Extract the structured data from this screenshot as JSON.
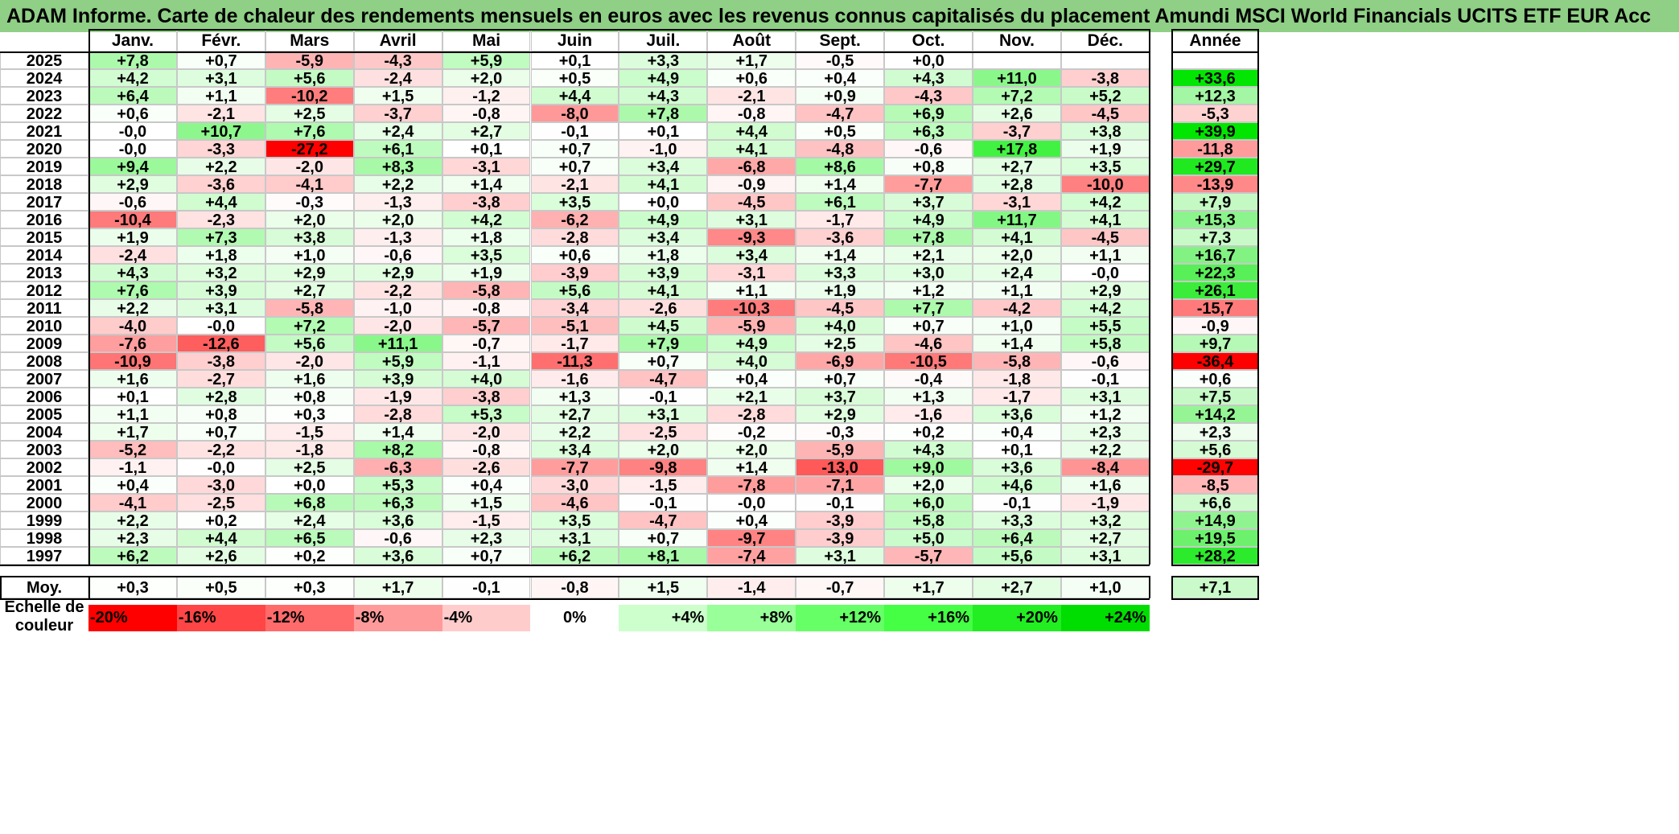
{
  "chart_data": {
    "type": "heatmap",
    "title": "ADAM Informe. Carte de chaleur des rendements mensuels en euros avec les revenus connus capitalisés du placement Amundi MSCI World Financials UCITS ETF EUR Acc",
    "columns": [
      "Janv.",
      "Févr.",
      "Mars",
      "Avril",
      "Mai",
      "Juin",
      "Juil.",
      "Août",
      "Sept.",
      "Oct.",
      "Nov.",
      "Déc."
    ],
    "year_column": "Année",
    "rows": [
      {
        "year": "2025",
        "months": [
          "+7,8",
          "+0,7",
          "-5,9",
          "-4,3",
          "+5,9",
          "+0,1",
          "+3,3",
          "+1,7",
          "-0,5",
          "+0,0",
          "",
          ""
        ],
        "annual": ""
      },
      {
        "year": "2024",
        "months": [
          "+4,2",
          "+3,1",
          "+5,6",
          "-2,4",
          "+2,0",
          "+0,5",
          "+4,9",
          "+0,6",
          "+0,4",
          "+4,3",
          "+11,0",
          "-3,8"
        ],
        "annual": "+33,6"
      },
      {
        "year": "2023",
        "months": [
          "+6,4",
          "+1,1",
          "-10,2",
          "+1,5",
          "-1,2",
          "+4,4",
          "+4,3",
          "-2,1",
          "+0,9",
          "-4,3",
          "+7,2",
          "+5,2"
        ],
        "annual": "+12,3"
      },
      {
        "year": "2022",
        "months": [
          "+0,6",
          "-2,1",
          "+2,5",
          "-3,7",
          "-0,8",
          "-8,0",
          "+7,8",
          "-0,8",
          "-4,7",
          "+6,9",
          "+2,6",
          "-4,5"
        ],
        "annual": "-5,3"
      },
      {
        "year": "2021",
        "months": [
          "-0,0",
          "+10,7",
          "+7,6",
          "+2,4",
          "+2,7",
          "-0,1",
          "+0,1",
          "+4,4",
          "+0,5",
          "+6,3",
          "-3,7",
          "+3,8"
        ],
        "annual": "+39,9"
      },
      {
        "year": "2020",
        "months": [
          "-0,0",
          "-3,3",
          "-27,2",
          "+6,1",
          "+0,1",
          "+0,7",
          "-1,0",
          "+4,1",
          "-4,8",
          "-0,6",
          "+17,8",
          "+1,9"
        ],
        "annual": "-11,8"
      },
      {
        "year": "2019",
        "months": [
          "+9,4",
          "+2,2",
          "-2,0",
          "+8,3",
          "-3,1",
          "+0,7",
          "+3,4",
          "-6,8",
          "+8,6",
          "+0,8",
          "+2,7",
          "+3,5"
        ],
        "annual": "+29,7"
      },
      {
        "year": "2018",
        "months": [
          "+2,9",
          "-3,6",
          "-4,1",
          "+2,2",
          "+1,4",
          "-2,1",
          "+4,1",
          "-0,9",
          "+1,4",
          "-7,7",
          "+2,8",
          "-10,0"
        ],
        "annual": "-13,9"
      },
      {
        "year": "2017",
        "months": [
          "-0,6",
          "+4,4",
          "-0,3",
          "-1,3",
          "-3,8",
          "+3,5",
          "+0,0",
          "-4,5",
          "+6,1",
          "+3,7",
          "-3,1",
          "+4,2"
        ],
        "annual": "+7,9"
      },
      {
        "year": "2016",
        "months": [
          "-10,4",
          "-2,3",
          "+2,0",
          "+2,0",
          "+4,2",
          "-6,2",
          "+4,9",
          "+3,1",
          "-1,7",
          "+4,9",
          "+11,7",
          "+4,1"
        ],
        "annual": "+15,3"
      },
      {
        "year": "2015",
        "months": [
          "+1,9",
          "+7,3",
          "+3,8",
          "-1,3",
          "+1,8",
          "-2,8",
          "+3,4",
          "-9,3",
          "-3,6",
          "+7,8",
          "+4,1",
          "-4,5"
        ],
        "annual": "+7,3"
      },
      {
        "year": "2014",
        "months": [
          "-2,4",
          "+1,8",
          "+1,0",
          "-0,6",
          "+3,5",
          "+0,6",
          "+1,8",
          "+3,4",
          "+1,4",
          "+2,1",
          "+2,0",
          "+1,1"
        ],
        "annual": "+16,7"
      },
      {
        "year": "2013",
        "months": [
          "+4,3",
          "+3,2",
          "+2,9",
          "+2,9",
          "+1,9",
          "-3,9",
          "+3,9",
          "-3,1",
          "+3,3",
          "+3,0",
          "+2,4",
          "-0,0"
        ],
        "annual": "+22,3"
      },
      {
        "year": "2012",
        "months": [
          "+7,6",
          "+3,9",
          "+2,7",
          "-2,2",
          "-5,8",
          "+5,6",
          "+4,1",
          "+1,1",
          "+1,9",
          "+1,2",
          "+1,1",
          "+2,9"
        ],
        "annual": "+26,1"
      },
      {
        "year": "2011",
        "months": [
          "+2,2",
          "+3,1",
          "-5,8",
          "-1,0",
          "-0,8",
          "-3,4",
          "-2,6",
          "-10,3",
          "-4,5",
          "+7,7",
          "-4,2",
          "+4,2"
        ],
        "annual": "-15,7"
      },
      {
        "year": "2010",
        "months": [
          "-4,0",
          "-0,0",
          "+7,2",
          "-2,0",
          "-5,7",
          "-5,1",
          "+4,5",
          "-5,9",
          "+4,0",
          "+0,7",
          "+1,0",
          "+5,5"
        ],
        "annual": "-0,9"
      },
      {
        "year": "2009",
        "months": [
          "-7,6",
          "-12,6",
          "+5,6",
          "+11,1",
          "-0,7",
          "-1,7",
          "+7,9",
          "+4,9",
          "+2,5",
          "-4,6",
          "+1,4",
          "+5,8"
        ],
        "annual": "+9,7"
      },
      {
        "year": "2008",
        "months": [
          "-10,9",
          "-3,8",
          "-2,0",
          "+5,9",
          "-1,1",
          "-11,3",
          "+0,7",
          "+4,0",
          "-6,9",
          "-10,5",
          "-5,8",
          "-0,6"
        ],
        "annual": "-36,4"
      },
      {
        "year": "2007",
        "months": [
          "+1,6",
          "-2,7",
          "+1,6",
          "+3,9",
          "+4,0",
          "-1,6",
          "-4,7",
          "+0,4",
          "+0,7",
          "-0,4",
          "-1,8",
          "-0,1"
        ],
        "annual": "+0,6"
      },
      {
        "year": "2006",
        "months": [
          "+0,1",
          "+2,8",
          "+0,8",
          "-1,9",
          "-3,8",
          "+1,3",
          "-0,1",
          "+2,1",
          "+3,7",
          "+1,3",
          "-1,7",
          "+3,1"
        ],
        "annual": "+7,5"
      },
      {
        "year": "2005",
        "months": [
          "+1,1",
          "+0,8",
          "+0,3",
          "-2,8",
          "+5,3",
          "+2,7",
          "+3,1",
          "-2,8",
          "+2,9",
          "-1,6",
          "+3,6",
          "+1,2"
        ],
        "annual": "+14,2"
      },
      {
        "year": "2004",
        "months": [
          "+1,7",
          "+0,7",
          "-1,5",
          "+1,4",
          "-2,0",
          "+2,2",
          "-2,5",
          "-0,2",
          "-0,3",
          "+0,2",
          "+0,4",
          "+2,3"
        ],
        "annual": "+2,3"
      },
      {
        "year": "2003",
        "months": [
          "-5,2",
          "-2,2",
          "-1,8",
          "+8,2",
          "-0,8",
          "+3,4",
          "+2,0",
          "+2,0",
          "-5,9",
          "+4,3",
          "+0,1",
          "+2,2"
        ],
        "annual": "+5,6"
      },
      {
        "year": "2002",
        "months": [
          "-1,1",
          "-0,0",
          "+2,5",
          "-6,3",
          "-2,6",
          "-7,7",
          "-9,8",
          "+1,4",
          "-13,0",
          "+9,0",
          "+3,6",
          "-8,4"
        ],
        "annual": "-29,7"
      },
      {
        "year": "2001",
        "months": [
          "+0,4",
          "-3,0",
          "+0,0",
          "+5,3",
          "+0,4",
          "-3,0",
          "-1,5",
          "-7,8",
          "-7,1",
          "+2,0",
          "+4,6",
          "+1,6"
        ],
        "annual": "-8,5"
      },
      {
        "year": "2000",
        "months": [
          "-4,1",
          "-2,5",
          "+6,8",
          "+6,3",
          "+1,5",
          "-4,6",
          "-0,1",
          "-0,0",
          "-0,1",
          "+6,0",
          "-0,1",
          "-1,9"
        ],
        "annual": "+6,6"
      },
      {
        "year": "1999",
        "months": [
          "+2,2",
          "+0,2",
          "+2,4",
          "+3,6",
          "-1,5",
          "+3,5",
          "-4,7",
          "+0,4",
          "-3,9",
          "+5,8",
          "+3,3",
          "+3,2"
        ],
        "annual": "+14,9"
      },
      {
        "year": "1998",
        "months": [
          "+2,3",
          "+4,4",
          "+6,5",
          "-0,6",
          "+2,3",
          "+3,1",
          "+0,7",
          "-9,7",
          "-3,9",
          "+5,0",
          "+6,4",
          "+2,7"
        ],
        "annual": "+19,5"
      },
      {
        "year": "1997",
        "months": [
          "+6,2",
          "+2,6",
          "+0,2",
          "+3,6",
          "+0,7",
          "+6,2",
          "+8,1",
          "-7,4",
          "+3,1",
          "-5,7",
          "+5,6",
          "+3,1"
        ],
        "annual": "+28,2"
      }
    ],
    "average": {
      "label": "Moy.",
      "months": [
        "+0,3",
        "+0,5",
        "+0,3",
        "+1,7",
        "-0,1",
        "-0,8",
        "+1,5",
        "-1,4",
        "-0,7",
        "+1,7",
        "+2,7",
        "+1,0"
      ],
      "annual": "+7,1"
    },
    "color_scale": {
      "label_line1": "Echelle de",
      "label_line2": "couleur",
      "stops": [
        "-20%",
        "-16%",
        "-12%",
        "-8%",
        "-4%",
        "0%",
        "+4%",
        "+8%",
        "+12%",
        "+16%",
        "+20%",
        "+24%"
      ]
    },
    "colors": {
      "title_bg": "#8fcf86",
      "negative_max": "#ff0000",
      "neutral": "#ffffff",
      "positive_max": "#00ee00"
    }
  }
}
